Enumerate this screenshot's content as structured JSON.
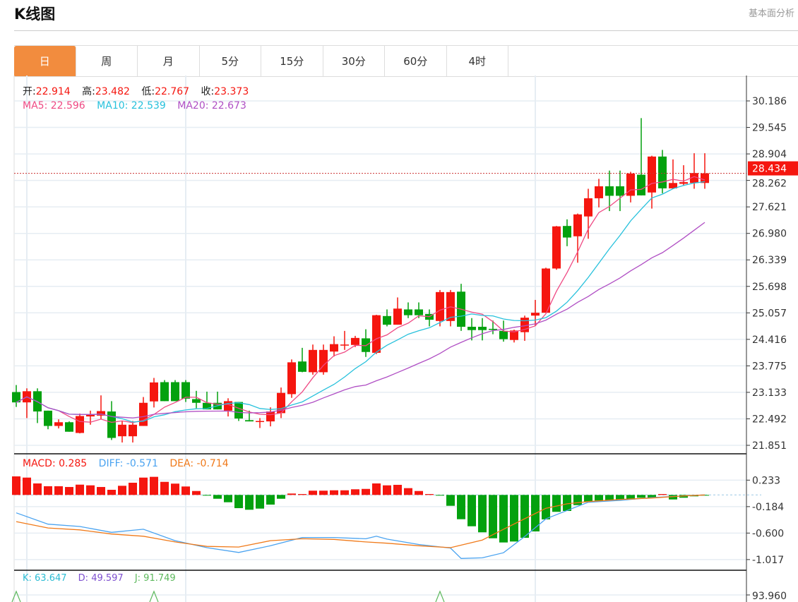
{
  "header": {
    "title": "K线图",
    "fundamental_link": "基本面分析"
  },
  "tabs": [
    {
      "label": "日",
      "active": true
    },
    {
      "label": "周"
    },
    {
      "label": "月"
    },
    {
      "label": "5分"
    },
    {
      "label": "15分"
    },
    {
      "label": "30分"
    },
    {
      "label": "60分"
    },
    {
      "label": "4时"
    }
  ],
  "ohlc_legend": {
    "open_label": "开:",
    "open": "22.914",
    "high_label": "高:",
    "high": "23.482",
    "low_label": "低:",
    "low": "22.767",
    "close_label": "收:",
    "close": "23.373"
  },
  "ma_legend": {
    "ma5": "MA5: 22.596",
    "ma10": "MA10: 22.539",
    "ma20": "MA20: 22.673"
  },
  "macd_legend": {
    "macd": "MACD: 0.285",
    "diff": "DIFF: -0.571",
    "dea": "DEA: -0.714"
  },
  "kdj_legend": {
    "k": "K: 63.647",
    "d": "D: 49.597",
    "j": "J: 91.749"
  },
  "colors": {
    "up": "#f5160f",
    "down": "#03a10e",
    "ma5": "#ef4a84",
    "ma10": "#27c1dc",
    "ma20": "#b04fc4",
    "diff": "#4aa3f0",
    "dea": "#f07a1a",
    "k": "#2bbcd4",
    "d": "#7d4fcf",
    "j": "#5cb85c",
    "accent": "#f28c3e"
  },
  "chart_data": {
    "type": "candlestick",
    "price_axis": {
      "ticks": [
        "30.186",
        "29.545",
        "28.904",
        "28.262",
        "27.621",
        "26.980",
        "26.339",
        "25.698",
        "25.057",
        "24.416",
        "23.775",
        "23.133",
        "22.492",
        "21.851"
      ],
      "range": [
        21.851,
        30.186
      ]
    },
    "last_price": "28.434",
    "candles": [
      [
        23.14,
        23.31,
        22.78,
        22.89
      ],
      [
        22.89,
        23.23,
        22.51,
        23.16
      ],
      [
        23.16,
        23.23,
        22.39,
        22.67
      ],
      [
        22.69,
        22.69,
        22.24,
        22.32
      ],
      [
        22.32,
        22.48,
        22.26,
        22.41
      ],
      [
        22.41,
        22.43,
        22.18,
        22.18
      ],
      [
        22.15,
        22.62,
        22.14,
        22.56
      ],
      [
        22.55,
        22.69,
        22.35,
        22.59
      ],
      [
        22.57,
        23.06,
        22.49,
        22.68
      ],
      [
        22.67,
        22.92,
        21.98,
        22.03
      ],
      [
        22.07,
        22.44,
        21.92,
        22.35
      ],
      [
        22.07,
        22.44,
        21.92,
        22.35
      ],
      [
        22.32,
        23.02,
        22.32,
        22.88
      ],
      [
        22.914,
        23.482,
        22.767,
        23.373
      ],
      [
        23.38,
        23.43,
        22.92,
        22.92
      ],
      [
        23.38,
        23.43,
        22.92,
        22.92
      ],
      [
        23.38,
        23.43,
        22.9,
        22.98
      ],
      [
        22.97,
        23.17,
        22.75,
        22.88
      ],
      [
        22.88,
        23.15,
        22.72,
        22.72
      ],
      [
        22.88,
        23.15,
        22.72,
        22.72
      ],
      [
        22.69,
        22.99,
        22.55,
        22.92
      ],
      [
        22.9,
        22.9,
        22.44,
        22.5
      ],
      [
        22.46,
        22.69,
        22.43,
        22.43
      ],
      [
        22.43,
        22.51,
        22.27,
        22.44
      ],
      [
        22.43,
        22.77,
        22.31,
        22.67
      ],
      [
        22.63,
        23.25,
        22.51,
        23.12
      ],
      [
        23.09,
        23.93,
        23.0,
        23.86
      ],
      [
        23.88,
        24.21,
        23.62,
        23.63
      ],
      [
        23.62,
        24.29,
        23.56,
        24.16
      ],
      [
        23.62,
        24.29,
        23.56,
        24.16
      ],
      [
        24.12,
        24.49,
        24.0,
        24.3
      ],
      [
        24.28,
        24.62,
        24.16,
        24.29
      ],
      [
        24.28,
        24.5,
        24.23,
        24.45
      ],
      [
        24.44,
        24.66,
        23.99,
        24.11
      ],
      [
        24.09,
        25.01,
        24.06,
        25.0
      ],
      [
        24.98,
        25.14,
        24.73,
        24.77
      ],
      [
        24.77,
        25.43,
        24.77,
        25.16
      ],
      [
        25.14,
        25.31,
        24.93,
        25.0
      ],
      [
        25.14,
        25.31,
        24.93,
        25.0
      ],
      [
        25.03,
        25.14,
        24.73,
        24.89
      ],
      [
        24.86,
        25.61,
        24.73,
        25.56
      ],
      [
        24.86,
        25.61,
        24.73,
        25.56
      ],
      [
        25.57,
        25.76,
        24.62,
        24.72
      ],
      [
        24.72,
        24.93,
        24.39,
        24.64
      ],
      [
        24.72,
        24.93,
        24.39,
        24.64
      ],
      [
        24.67,
        24.87,
        24.54,
        24.66
      ],
      [
        24.62,
        24.87,
        24.36,
        24.42
      ],
      [
        24.4,
        24.65,
        24.34,
        24.63
      ],
      [
        24.59,
        24.99,
        24.38,
        24.94
      ],
      [
        24.99,
        25.37,
        24.74,
        25.06
      ],
      [
        25.06,
        26.15,
        25.06,
        26.13
      ],
      [
        26.13,
        27.16,
        26.1,
        27.15
      ],
      [
        27.16,
        27.32,
        26.67,
        26.88
      ],
      [
        26.91,
        27.46,
        26.27,
        27.44
      ],
      [
        27.39,
        28.06,
        26.85,
        27.83
      ],
      [
        27.83,
        28.3,
        27.61,
        28.12
      ],
      [
        28.12,
        28.5,
        27.52,
        27.89
      ],
      [
        28.12,
        28.5,
        27.52,
        27.89
      ],
      [
        27.89,
        28.47,
        27.73,
        28.43
      ],
      [
        28.4,
        29.77,
        27.9,
        27.9
      ],
      [
        27.97,
        28.86,
        27.58,
        28.84
      ],
      [
        28.84,
        29.0,
        27.95,
        28.07
      ],
      [
        28.07,
        28.77,
        28.06,
        28.2
      ],
      [
        28.18,
        28.63,
        28.13,
        28.22
      ],
      [
        28.2,
        28.92,
        28.06,
        28.44
      ],
      [
        28.2,
        28.92,
        28.06,
        28.434
      ]
    ],
    "macd_axis": {
      "ticks": [
        "0.233",
        "-0.184",
        "-0.600",
        "-1.017"
      ]
    },
    "macd_hist": [
      0.292,
      0.273,
      0.181,
      0.137,
      0.137,
      0.125,
      0.162,
      0.151,
      0.125,
      0.081,
      0.144,
      0.192,
      0.273,
      0.285,
      0.206,
      0.178,
      0.133,
      0.062,
      -0.005,
      -0.06,
      -0.115,
      -0.208,
      -0.233,
      -0.215,
      -0.152,
      -0.06,
      0.022,
      0.014,
      0.067,
      0.067,
      0.073,
      0.073,
      0.089,
      0.095,
      0.181,
      0.151,
      0.159,
      0.107,
      0.062,
      0.014,
      -0.01,
      -0.171,
      -0.382,
      -0.493,
      -0.588,
      -0.682,
      -0.748,
      -0.733,
      -0.674,
      -0.574,
      -0.385,
      -0.266,
      -0.252,
      -0.16,
      -0.104,
      -0.089,
      -0.089,
      -0.085,
      -0.071,
      -0.044,
      -0.044,
      0.014,
      -0.071,
      -0.044,
      -0.022,
      -0.008
    ],
    "diff_points": [
      [
        1,
        -0.282
      ],
      [
        4,
        -0.46
      ],
      [
        7,
        -0.497
      ],
      [
        10,
        -0.589
      ],
      [
        13,
        -0.54
      ],
      [
        16,
        -0.72
      ],
      [
        19,
        -0.83
      ],
      [
        22,
        -0.905
      ],
      [
        25,
        -0.8
      ],
      [
        28,
        -0.67
      ],
      [
        31,
        -0.67
      ],
      [
        34,
        -0.69
      ],
      [
        35,
        -0.65
      ],
      [
        36,
        -0.695
      ],
      [
        39,
        -0.78
      ],
      [
        42,
        -0.836
      ],
      [
        43,
        -1.0
      ],
      [
        45,
        -0.99
      ],
      [
        47,
        -0.91
      ],
      [
        49,
        -0.654
      ],
      [
        51,
        -0.376
      ],
      [
        53,
        -0.244
      ],
      [
        55,
        -0.115
      ],
      [
        58,
        -0.085
      ],
      [
        61,
        -0.041
      ],
      [
        64,
        -0.015
      ],
      [
        66,
        0.0
      ]
    ],
    "dea_points": [
      [
        1,
        -0.42
      ],
      [
        4,
        -0.52
      ],
      [
        7,
        -0.55
      ],
      [
        10,
        -0.615
      ],
      [
        13,
        -0.65
      ],
      [
        16,
        -0.74
      ],
      [
        19,
        -0.81
      ],
      [
        22,
        -0.82
      ],
      [
        25,
        -0.72
      ],
      [
        28,
        -0.69
      ],
      [
        31,
        -0.7
      ],
      [
        34,
        -0.74
      ],
      [
        36,
        -0.76
      ],
      [
        39,
        -0.8
      ],
      [
        42,
        -0.83
      ],
      [
        45,
        -0.71
      ],
      [
        47,
        -0.54
      ],
      [
        49,
        -0.374
      ],
      [
        51,
        -0.21
      ],
      [
        53,
        -0.14
      ],
      [
        55,
        -0.104
      ],
      [
        58,
        -0.071
      ],
      [
        61,
        -0.049
      ],
      [
        64,
        -0.015
      ],
      [
        66,
        0.0
      ]
    ],
    "kdj_axis": {
      "ticks": [
        "93.960"
      ]
    },
    "j_peaks": [
      1,
      14,
      41
    ]
  }
}
